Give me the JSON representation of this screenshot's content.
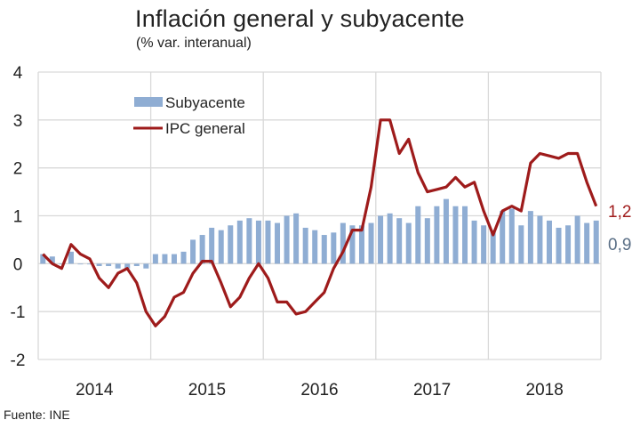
{
  "chart_data": {
    "type": "bar+line",
    "title": "Inflación general y subyacente",
    "subtitle": "(% var. interanual)",
    "source": "Fuente: INE",
    "xlabel": "",
    "ylabel": "",
    "ylim": [
      -2,
      4
    ],
    "yticks": [
      "4",
      "3",
      "2",
      "1",
      "0",
      "-1",
      "-2"
    ],
    "ytick_values": [
      4,
      3,
      2,
      1,
      0,
      -1,
      -2
    ],
    "categories": [
      "2014",
      "2015",
      "2016",
      "2017",
      "2018"
    ],
    "months_per_category": 12,
    "grid": true,
    "legend": {
      "placement": "top-left",
      "entries": [
        {
          "name": "Subyacente",
          "kind": "bar",
          "color": "#8fadd3"
        },
        {
          "name": "IPC general",
          "kind": "line",
          "color": "#9e1b1b"
        }
      ]
    },
    "series": [
      {
        "name": "Subyacente",
        "type": "bar",
        "color": "#8fadd3",
        "values": [
          0.2,
          0.15,
          0.0,
          0.25,
          0.0,
          0.0,
          -0.05,
          -0.05,
          -0.1,
          -0.1,
          -0.05,
          -0.1,
          0.2,
          0.2,
          0.2,
          0.25,
          0.5,
          0.6,
          0.75,
          0.7,
          0.8,
          0.9,
          0.95,
          0.9,
          0.9,
          0.85,
          1.0,
          1.05,
          0.75,
          0.7,
          0.6,
          0.65,
          0.85,
          0.8,
          0.8,
          0.85,
          1.0,
          1.05,
          0.95,
          0.85,
          1.2,
          0.95,
          1.2,
          1.35,
          1.2,
          1.2,
          0.9,
          0.8,
          0.7,
          1.1,
          1.15,
          0.8,
          1.1,
          1.0,
          0.9,
          0.75,
          0.8,
          1.0,
          0.85,
          0.9
        ],
        "end_label": "0,9"
      },
      {
        "name": "IPC general",
        "type": "line",
        "color": "#9e1b1b",
        "values": [
          0.2,
          0.0,
          -0.1,
          0.4,
          0.2,
          0.1,
          -0.3,
          -0.5,
          -0.2,
          -0.1,
          -0.4,
          -1.0,
          -1.3,
          -1.1,
          -0.7,
          -0.6,
          -0.2,
          0.05,
          0.05,
          -0.4,
          -0.9,
          -0.7,
          -0.3,
          0.0,
          -0.3,
          -0.8,
          -0.8,
          -1.05,
          -1.0,
          -0.8,
          -0.6,
          -0.1,
          0.25,
          0.7,
          0.7,
          1.6,
          3.0,
          3.0,
          2.3,
          2.6,
          1.9,
          1.5,
          1.55,
          1.6,
          1.8,
          1.6,
          1.7,
          1.1,
          0.6,
          1.1,
          1.2,
          1.1,
          2.1,
          2.3,
          2.25,
          2.2,
          2.3,
          2.3,
          1.7,
          1.2
        ],
        "end_label": "1,2"
      }
    ]
  },
  "colors": {
    "bar": "#8fadd3",
    "line": "#9e1b1b",
    "grid": "#d9d9d9",
    "ipc_label": "#a01c1c",
    "sub_label": "#5a6f86"
  }
}
